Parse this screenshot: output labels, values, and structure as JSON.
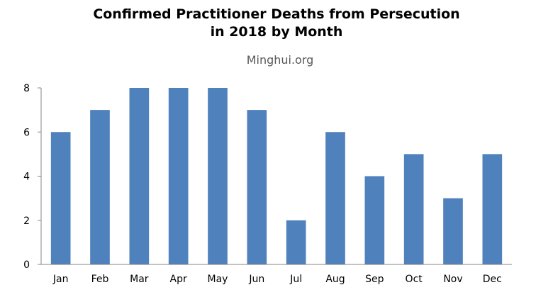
{
  "chart_data": {
    "type": "bar",
    "title_line1": "Confirmed Practitioner Deaths from Persecution",
    "title_line2": "in 2018 by Month",
    "subtitle": "Minghui.org",
    "categories": [
      "Jan",
      "Feb",
      "Mar",
      "Apr",
      "May",
      "Jun",
      "Jul",
      "Aug",
      "Sep",
      "Oct",
      "Nov",
      "Dec"
    ],
    "values": [
      6,
      7,
      8,
      8,
      8,
      7,
      2,
      6,
      4,
      5,
      3,
      5
    ],
    "ylim": [
      0,
      8
    ],
    "yticks": [
      "0",
      "2",
      "4",
      "6",
      "8"
    ],
    "bar_color": "#4f81bd",
    "axis_color": "#868686",
    "grid": false,
    "legend": "none"
  }
}
